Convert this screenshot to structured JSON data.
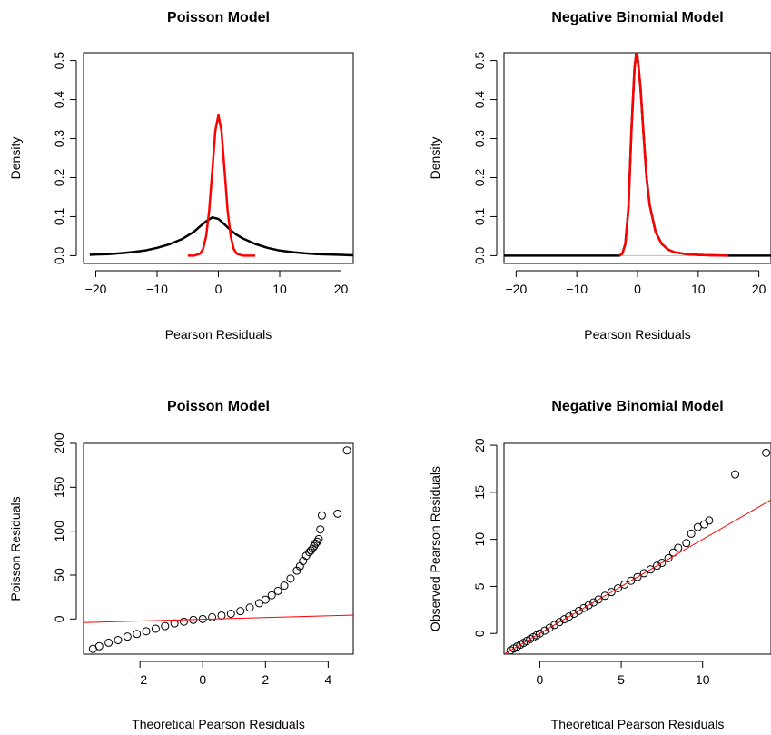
{
  "chart_data": [
    {
      "type": "line",
      "title": "Poisson Model",
      "xlabel": "Pearson Residuals",
      "ylabel": "Density",
      "xlim": [
        -22,
        22
      ],
      "ylim": [
        -0.02,
        0.52
      ],
      "xticks": [
        -20,
        -10,
        0,
        10,
        20
      ],
      "yticks": [
        0.0,
        0.1,
        0.2,
        0.3,
        0.4,
        0.5
      ],
      "xtick_labels": [
        "−20",
        "−10",
        "0",
        "10",
        "20"
      ],
      "ytick_labels": [
        "0.0",
        "0.1",
        "0.2",
        "0.3",
        "0.4",
        "0.5"
      ],
      "grid": false,
      "series": [
        {
          "color": "#000000",
          "x": [
            -21,
            -20,
            -18,
            -16,
            -14,
            -12,
            -10,
            -8,
            -6,
            -4,
            -3,
            -2,
            -1,
            0,
            1,
            2,
            3,
            4,
            6,
            8,
            10,
            12,
            14,
            16,
            18,
            20,
            22
          ],
          "y": [
            0.002,
            0.003,
            0.004,
            0.006,
            0.009,
            0.013,
            0.02,
            0.029,
            0.042,
            0.061,
            0.075,
            0.088,
            0.098,
            0.094,
            0.08,
            0.065,
            0.053,
            0.044,
            0.03,
            0.02,
            0.013,
            0.009,
            0.006,
            0.004,
            0.003,
            0.002,
            0.001
          ]
        },
        {
          "color": "#ff0000",
          "x": [
            -5,
            -4,
            -3,
            -2.5,
            -2,
            -1.5,
            -1,
            -0.5,
            0,
            0.5,
            1,
            1.5,
            2,
            2.5,
            3,
            4,
            5,
            6
          ],
          "y": [
            0.0,
            0.0,
            0.005,
            0.017,
            0.05,
            0.117,
            0.218,
            0.32,
            0.36,
            0.32,
            0.218,
            0.117,
            0.05,
            0.017,
            0.005,
            0.0,
            0.0,
            0.0
          ]
        }
      ]
    },
    {
      "type": "line",
      "title": "Negative Binomial Model",
      "xlabel": "Pearson Residuals",
      "ylabel": "Density",
      "xlim": [
        -22,
        22
      ],
      "ylim": [
        -0.02,
        0.52
      ],
      "xticks": [
        -20,
        -10,
        0,
        10,
        20
      ],
      "yticks": [
        0.0,
        0.1,
        0.2,
        0.3,
        0.4,
        0.5
      ],
      "xtick_labels": [
        "−20",
        "−10",
        "0",
        "10",
        "20"
      ],
      "ytick_labels": [
        "0.0",
        "0.1",
        "0.2",
        "0.3",
        "0.4",
        "0.5"
      ],
      "grid": false,
      "series": [
        {
          "color": "#000000",
          "x": [
            -22,
            -3,
            -2.5,
            -2,
            -1.5,
            -1,
            -0.5,
            -0.2,
            0,
            0.5,
            1,
            1.5,
            2,
            3,
            4,
            5,
            6,
            8,
            10,
            12,
            15,
            18,
            22
          ],
          "y": [
            0.0,
            0.0,
            0.005,
            0.03,
            0.12,
            0.32,
            0.48,
            0.52,
            0.51,
            0.43,
            0.31,
            0.2,
            0.13,
            0.06,
            0.03,
            0.016,
            0.009,
            0.004,
            0.002,
            0.001,
            0.0,
            0.0,
            0.0
          ]
        },
        {
          "color": "#ff0000",
          "x": [
            -3,
            -2.5,
            -2,
            -1.5,
            -1,
            -0.5,
            -0.2,
            0,
            0.5,
            1,
            1.5,
            2,
            3,
            4,
            5,
            6,
            8,
            10,
            12,
            15
          ],
          "y": [
            0.0,
            0.005,
            0.03,
            0.12,
            0.32,
            0.48,
            0.52,
            0.51,
            0.43,
            0.31,
            0.2,
            0.13,
            0.06,
            0.03,
            0.016,
            0.009,
            0.004,
            0.002,
            0.001,
            0.0
          ]
        }
      ]
    },
    {
      "type": "scatter",
      "title": "Poisson Model",
      "xlabel": "Theoretical Pearson Residuals",
      "ylabel": "Poisson Residuals",
      "xlim": [
        -3.8,
        4.8
      ],
      "ylim": [
        -40,
        200
      ],
      "xticks": [
        -2,
        0,
        2,
        4
      ],
      "yticks": [
        0,
        50,
        100,
        150,
        200
      ],
      "xtick_labels": [
        "−2",
        "0",
        "2",
        "4"
      ],
      "ytick_labels": [
        "0",
        "50",
        "100",
        "150",
        "200"
      ],
      "grid": false,
      "points": {
        "x": [
          -3.5,
          -3.3,
          -3.0,
          -2.7,
          -2.4,
          -2.1,
          -1.8,
          -1.5,
          -1.2,
          -0.9,
          -0.6,
          -0.3,
          0.0,
          0.3,
          0.6,
          0.9,
          1.2,
          1.5,
          1.8,
          2.0,
          2.2,
          2.4,
          2.6,
          2.8,
          3.0,
          3.1,
          3.2,
          3.3,
          3.4,
          3.45,
          3.5,
          3.55,
          3.6,
          3.65,
          3.7,
          3.75,
          3.8,
          4.3,
          4.6
        ],
        "y": [
          -34,
          -31,
          -27,
          -24,
          -20,
          -17,
          -14,
          -11,
          -8,
          -5,
          -3,
          -1,
          0,
          2,
          4,
          6,
          9,
          13,
          18,
          22,
          27,
          32,
          38,
          46,
          55,
          60,
          66,
          72,
          76,
          78,
          80,
          83,
          86,
          88,
          91,
          102,
          118,
          120,
          192
        ]
      },
      "reference_line": {
        "color": "#ff0000",
        "x": [
          -3.8,
          4.8
        ],
        "y": [
          -4,
          4.4
        ]
      }
    },
    {
      "type": "scatter",
      "title": "Negative Binomial Model",
      "xlabel": "Theoretical Pearson Residuals",
      "ylabel": "Observed Pearson Residuals",
      "xlim": [
        -2.2,
        14.2
      ],
      "ylim": [
        -2.2,
        20.2
      ],
      "xticks": [
        0,
        5,
        10
      ],
      "yticks": [
        0,
        5,
        10,
        15,
        20
      ],
      "xtick_labels": [
        "0",
        "5",
        "10"
      ],
      "ytick_labels": [
        "0",
        "5",
        "10",
        "15",
        "20"
      ],
      "grid": false,
      "points": {
        "x": [
          -1.8,
          -1.6,
          -1.4,
          -1.2,
          -1.0,
          -0.8,
          -0.6,
          -0.4,
          -0.2,
          0.0,
          0.3,
          0.6,
          0.9,
          1.2,
          1.5,
          1.8,
          2.1,
          2.4,
          2.7,
          3.0,
          3.3,
          3.6,
          4.0,
          4.4,
          4.8,
          5.2,
          5.6,
          6.0,
          6.4,
          6.8,
          7.2,
          7.5,
          7.9,
          8.2,
          8.5,
          9.0,
          9.3,
          9.7,
          10.1,
          10.4,
          12.0,
          13.9
        ],
        "y": [
          -1.8,
          -1.6,
          -1.4,
          -1.2,
          -1.0,
          -0.8,
          -0.6,
          -0.4,
          -0.2,
          0.0,
          0.3,
          0.6,
          0.9,
          1.2,
          1.5,
          1.8,
          2.1,
          2.4,
          2.7,
          3.0,
          3.3,
          3.6,
          4.0,
          4.4,
          4.8,
          5.2,
          5.6,
          6.0,
          6.4,
          6.8,
          7.2,
          7.5,
          8.0,
          8.6,
          9.1,
          9.6,
          10.6,
          11.3,
          11.6,
          12.0,
          16.9,
          19.2
        ]
      },
      "reference_line": {
        "color": "#ff0000",
        "x": [
          -2.2,
          14.2
        ],
        "y": [
          -2.2,
          14.2
        ]
      }
    }
  ]
}
